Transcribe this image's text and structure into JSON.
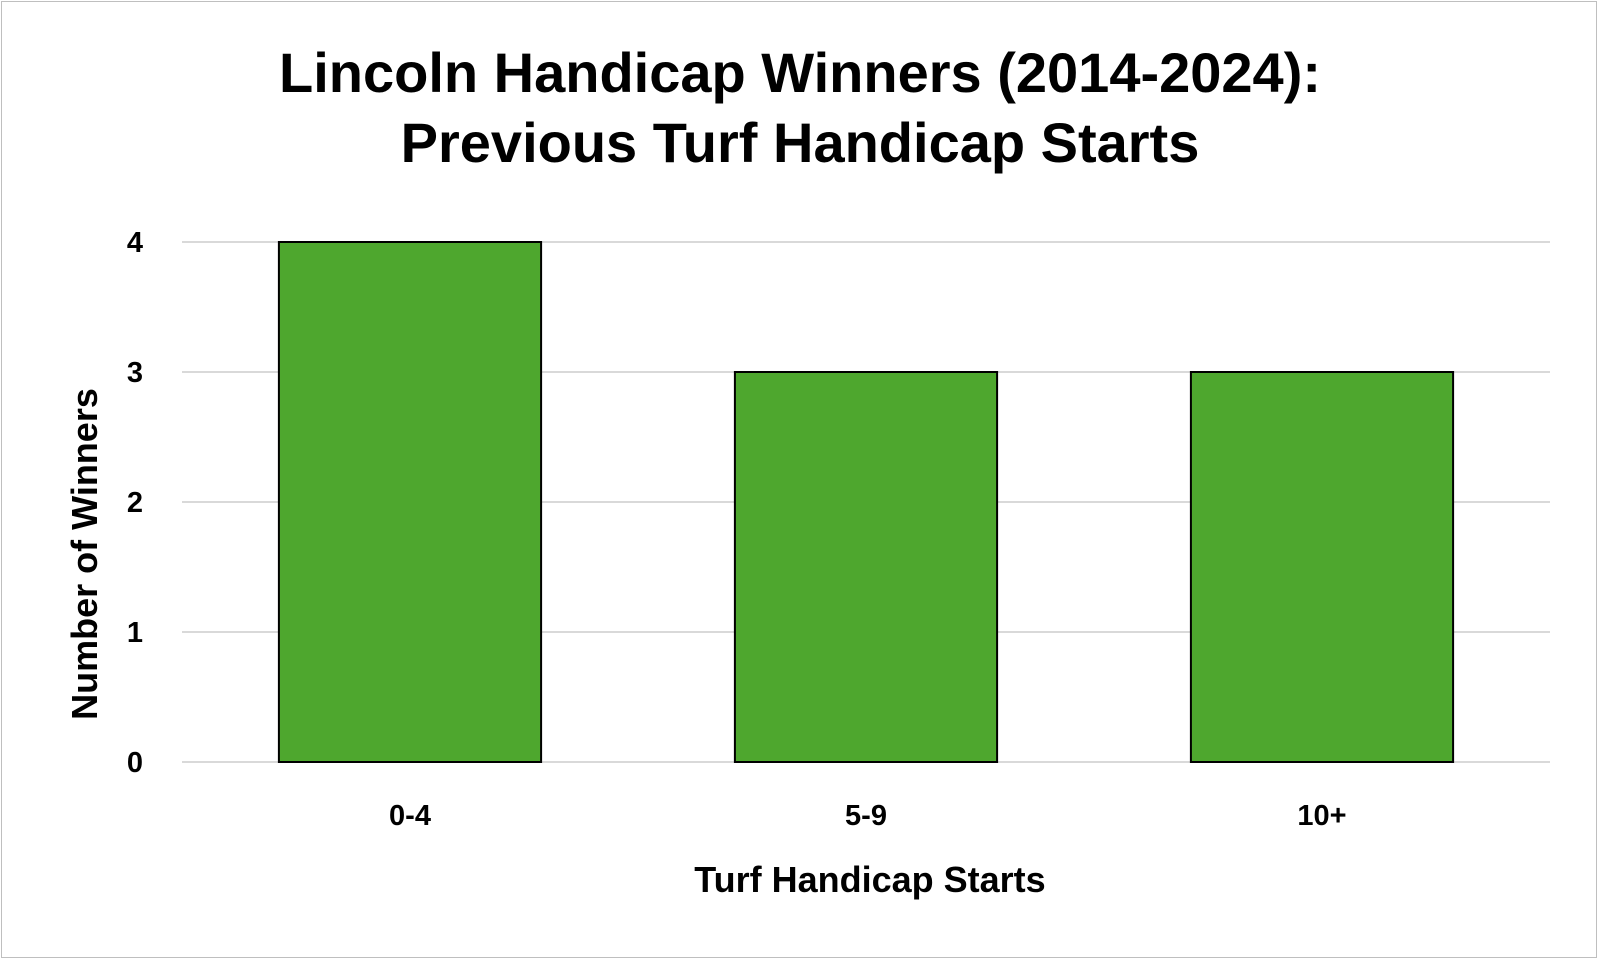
{
  "chart_data": {
    "type": "bar",
    "title": "Lincoln Handicap Winners (2014-2024): Previous Turf Handicap Starts",
    "xlabel": "Turf Handicap Starts",
    "ylabel": "Number of Winners",
    "categories": [
      "0-4",
      "5-9",
      "10+"
    ],
    "values": [
      4,
      3,
      3
    ],
    "ylim": [
      0,
      4
    ],
    "yticks": [
      0,
      1,
      2,
      3,
      4
    ],
    "grid": true,
    "legend": "none",
    "colors": {
      "bar_fill": "#4ea72e",
      "bar_stroke": "#000000",
      "grid": "#d9d9d9"
    }
  }
}
